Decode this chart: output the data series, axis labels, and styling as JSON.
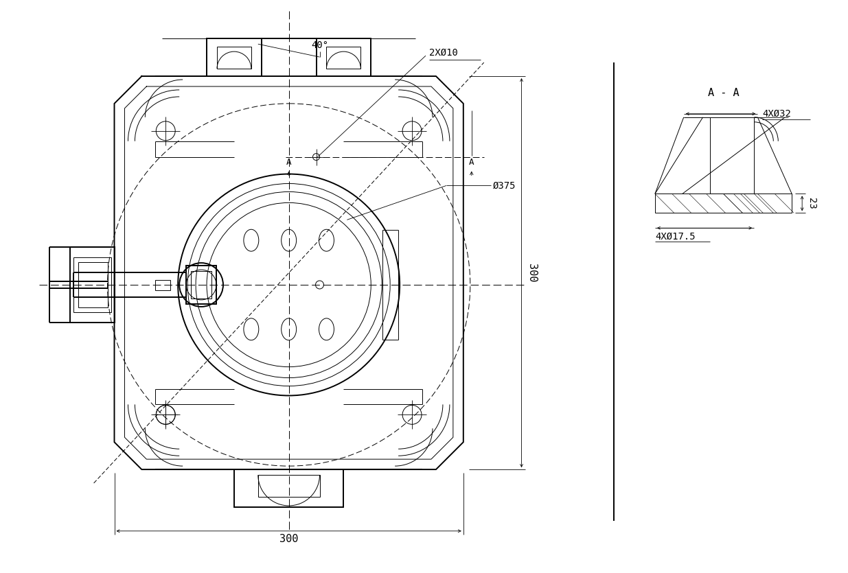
{
  "bg_color": "#ffffff",
  "lc": "#000000",
  "dim_300_bottom": "300",
  "dim_300_right": "300",
  "dim_375": "Ø375",
  "dim_2x10": "2XØ10",
  "dim_40deg": "40°",
  "dim_AA": "A - A",
  "dim_4x32": "4XØ32",
  "dim_4x175": "4XØ17.5",
  "dim_23": "23",
  "label_A": "A",
  "lw_thick": 1.4,
  "lw_med": 1.0,
  "lw_thin": 0.7,
  "lw_dim": 0.6
}
